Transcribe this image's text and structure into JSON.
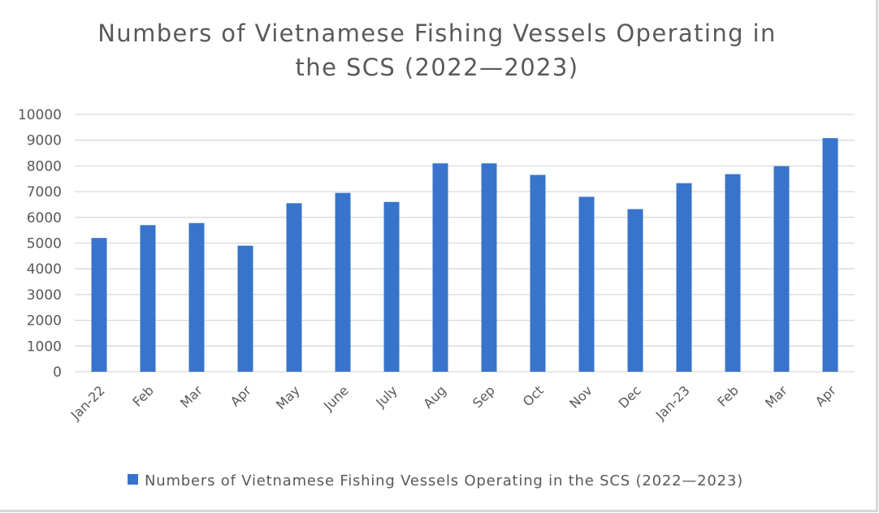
{
  "chart_data": {
    "type": "bar",
    "title_lines": [
      "Numbers of Vietnamese Fishing Vessels Operating in",
      "the SCS (2022—2023)"
    ],
    "categories": [
      "Jan-22",
      "Feb",
      "Mar",
      "Apr",
      "May",
      "June",
      "July",
      "Aug",
      "Sep",
      "Oct",
      "Nov",
      "Dec",
      "Jan-23",
      "Feb",
      "Mar",
      "Apr"
    ],
    "series": [
      {
        "name": "Numbers of Vietnamese Fishing Vessels Operating in the SCS (2022—2023)",
        "values": [
          5200,
          5700,
          5780,
          4900,
          6550,
          6950,
          6600,
          8100,
          8100,
          7650,
          6800,
          6320,
          7330,
          7680,
          7990,
          9080
        ],
        "color": "#3874cb"
      }
    ],
    "ylim": [
      0,
      10000
    ],
    "yticks": [
      0,
      1000,
      2000,
      3000,
      4000,
      5000,
      6000,
      7000,
      8000,
      9000,
      10000
    ],
    "grid": true,
    "gridColor": "#d9d9d9",
    "legend": "bottom"
  }
}
